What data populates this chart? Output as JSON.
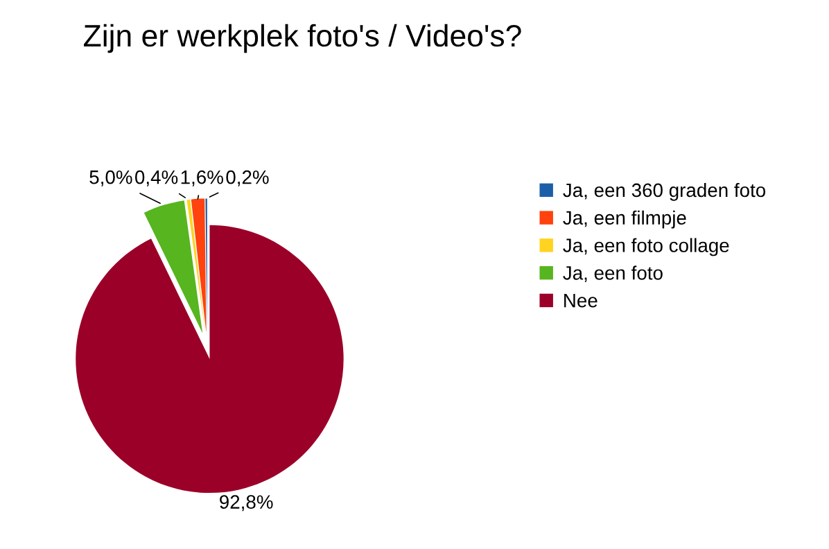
{
  "chart_data": {
    "type": "pie",
    "title": "Zijn er werkplek foto's / Video's?",
    "categories": [
      "Ja, een 360 graden foto",
      "Ja, een filmpje",
      "Ja, een foto collage",
      "Ja, een foto",
      "Nee"
    ],
    "values": [
      0.2,
      1.6,
      0.4,
      5.0,
      92.8
    ],
    "value_labels": [
      "0,2%",
      "1,6%",
      "0,4%",
      "5,0%",
      "92,8%"
    ],
    "colors": [
      "#1c5fa8",
      "#ff420e",
      "#ffd320",
      "#57b51f",
      "#9b0028"
    ],
    "legend": "right"
  }
}
